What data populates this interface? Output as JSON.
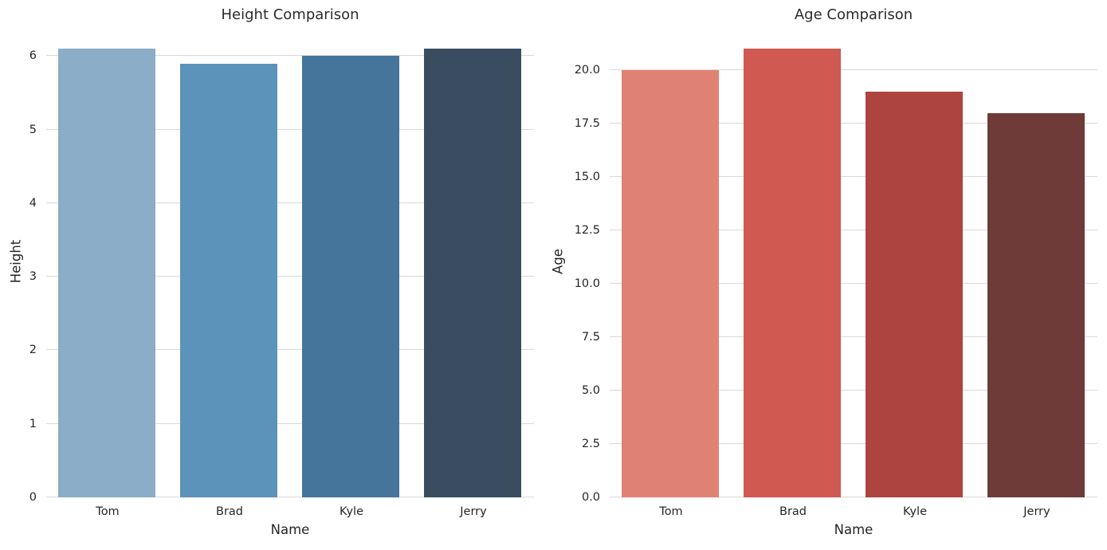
{
  "figure": {
    "background": "#ffffff",
    "text_color": "#262626",
    "grid_color": "#d9d9d9"
  },
  "chart_data": [
    {
      "type": "bar",
      "title": "Height Comparison",
      "xlabel": "Name",
      "ylabel": "Height",
      "categories": [
        "Tom",
        "Brad",
        "Kyle",
        "Jerry"
      ],
      "values": [
        6.1,
        5.9,
        6.0,
        6.1
      ],
      "bar_colors": [
        "#8badc7",
        "#5c93ba",
        "#45759b",
        "#3a4d60"
      ],
      "ylim": [
        0,
        6.405
      ],
      "yticks": [
        0,
        1,
        2,
        3,
        4,
        5,
        6
      ],
      "ytick_labels": [
        "0",
        "1",
        "2",
        "3",
        "4",
        "5",
        "6"
      ],
      "grid": true,
      "legend": false
    },
    {
      "type": "bar",
      "title": "Age Comparison",
      "xlabel": "Name",
      "ylabel": "Age",
      "categories": [
        "Tom",
        "Brad",
        "Kyle",
        "Jerry"
      ],
      "values": [
        20,
        21,
        19,
        18
      ],
      "bar_colors": [
        "#e08273",
        "#d05a51",
        "#ae4440",
        "#6f3b39"
      ],
      "ylim": [
        0,
        22.05
      ],
      "yticks": [
        0,
        2.5,
        5,
        7.5,
        10,
        12.5,
        15,
        17.5,
        20
      ],
      "ytick_labels": [
        "0.0",
        "2.5",
        "5.0",
        "7.5",
        "10.0",
        "12.5",
        "15.0",
        "17.5",
        "20.0"
      ],
      "grid": true,
      "legend": false
    }
  ]
}
